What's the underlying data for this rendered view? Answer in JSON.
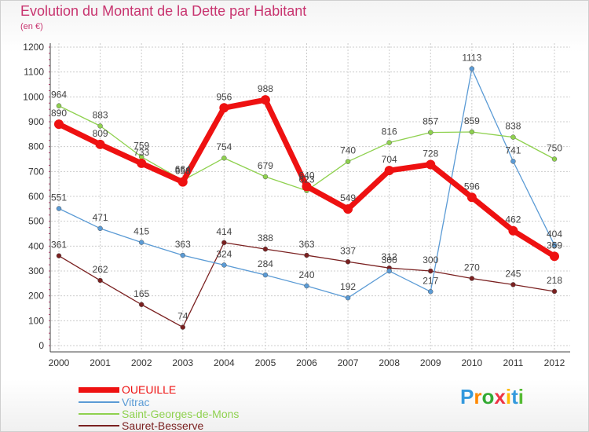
{
  "chart_data": {
    "type": "line",
    "title": "Evolution du Montant de la Dette par Habitant",
    "subtitle": "(en €)",
    "xlabel": "",
    "ylabel": "",
    "ylim": [
      0,
      1200
    ],
    "yticks": [
      0,
      100,
      200,
      300,
      400,
      500,
      600,
      700,
      800,
      900,
      1000,
      1100,
      1200
    ],
    "categories": [
      "2000",
      "2001",
      "2002",
      "2003",
      "2004",
      "2005",
      "2006",
      "2007",
      "2008",
      "2009",
      "2010",
      "2011",
      "2012"
    ],
    "grid": true,
    "legend_position": "bottom-left",
    "series": [
      {
        "name": "Sauret-Besserve",
        "color": "#7a2020",
        "values": [
          361,
          262,
          165,
          74,
          414,
          388,
          363,
          337,
          312,
          300,
          270,
          245,
          218
        ]
      },
      {
        "name": "Vitrac",
        "color": "#5b9bd5",
        "values": [
          551,
          471,
          415,
          363,
          324,
          284,
          240,
          192,
          300,
          217,
          1113,
          741,
          404
        ]
      },
      {
        "name": "Saint-Georges-de-Mons",
        "color": "#8fd14f",
        "values": [
          964,
          883,
          759,
          664,
          754,
          679,
          623,
          740,
          816,
          857,
          859,
          838,
          750
        ]
      },
      {
        "name": "OUEUILLE",
        "color": "#ee1111",
        "values": [
          890,
          809,
          733,
          658,
          956,
          988,
          640,
          549,
          704,
          728,
          596,
          462,
          359
        ]
      }
    ]
  },
  "legend": [
    {
      "label": "OUEUILLE",
      "color": "#ee1111"
    },
    {
      "label": "Vitrac",
      "color": "#5b9bd5"
    },
    {
      "label": "Saint-Georges-de-Mons",
      "color": "#8fd14f"
    },
    {
      "label": "Sauret-Besserve",
      "color": "#7a2020"
    }
  ],
  "logo": {
    "letters": [
      "P",
      "r",
      "o",
      "x",
      "i",
      "t",
      "i"
    ],
    "colors": [
      "#3399dd",
      "#ff8800",
      "#33aa33",
      "#ee3344",
      "#ffbb00",
      "#3399dd",
      "#55bb33"
    ]
  }
}
